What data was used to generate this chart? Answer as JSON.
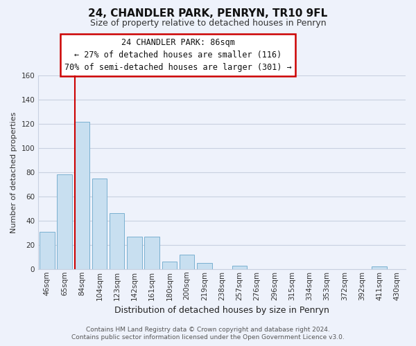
{
  "title": "24, CHANDLER PARK, PENRYN, TR10 9FL",
  "subtitle": "Size of property relative to detached houses in Penryn",
  "xlabel": "Distribution of detached houses by size in Penryn",
  "ylabel": "Number of detached properties",
  "bar_labels": [
    "46sqm",
    "65sqm",
    "84sqm",
    "104sqm",
    "123sqm",
    "142sqm",
    "161sqm",
    "180sqm",
    "200sqm",
    "219sqm",
    "238sqm",
    "257sqm",
    "276sqm",
    "296sqm",
    "315sqm",
    "334sqm",
    "353sqm",
    "372sqm",
    "392sqm",
    "411sqm",
    "430sqm"
  ],
  "bar_values": [
    31,
    78,
    122,
    75,
    46,
    27,
    27,
    6,
    12,
    5,
    0,
    3,
    0,
    0,
    0,
    0,
    0,
    0,
    0,
    2,
    0
  ],
  "bar_color": "#c8dff0",
  "bar_edge_color": "#7ab0d0",
  "annotation_title": "24 CHANDLER PARK: 86sqm",
  "annotation_line1": "← 27% of detached houses are smaller (116)",
  "annotation_line2": "70% of semi-detached houses are larger (301) →",
  "vline_color": "#cc0000",
  "vline_x_index": 2,
  "ylim": [
    0,
    160
  ],
  "yticks": [
    0,
    20,
    40,
    60,
    80,
    100,
    120,
    140,
    160
  ],
  "footer_line1": "Contains HM Land Registry data © Crown copyright and database right 2024.",
  "footer_line2": "Contains public sector information licensed under the Open Government Licence v3.0.",
  "bg_color": "#eef2fb",
  "plot_bg_color": "#eef2fb",
  "grid_color": "#c8d0e0",
  "annotation_box_color": "#ffffff",
  "annotation_box_edge": "#cc0000",
  "title_fontsize": 11,
  "subtitle_fontsize": 9,
  "ylabel_fontsize": 8,
  "xlabel_fontsize": 9,
  "tick_fontsize": 7.5,
  "footer_fontsize": 6.5,
  "annotation_fontsize": 8.5
}
